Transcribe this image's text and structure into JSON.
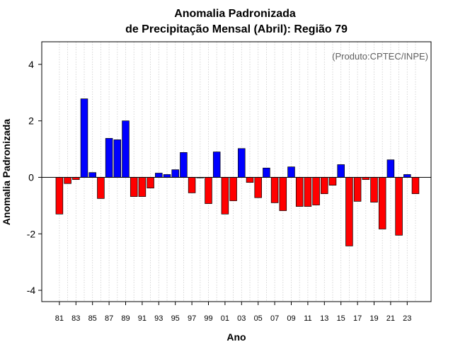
{
  "chart_data": {
    "type": "bar",
    "title_line1": "Anomalia Padronizada",
    "title_line2": "de Precipitação Mensal (Abril): Região 79",
    "xlabel": "Ano",
    "ylabel": "Anomalia Padronizada",
    "credit": "(Produto:CPTEC/INPE)",
    "ylim": [
      -4.4,
      4.8
    ],
    "yticks": [
      -4,
      -2,
      0,
      2,
      4
    ],
    "ytick_labels": [
      "-4",
      "-2",
      "0",
      "2",
      "4"
    ],
    "x_labels": [
      "81",
      "83",
      "85",
      "87",
      "89",
      "91",
      "93",
      "95",
      "97",
      "99",
      "01",
      "03",
      "05",
      "07",
      "09",
      "11",
      "13",
      "15",
      "17",
      "19",
      "21",
      "23"
    ],
    "categories": [
      "1981",
      "1982",
      "1983",
      "1984",
      "1985",
      "1986",
      "1987",
      "1988",
      "1989",
      "1990",
      "1991",
      "1992",
      "1993",
      "1994",
      "1995",
      "1996",
      "1997",
      "1998",
      "1999",
      "2000",
      "2001",
      "2002",
      "2003",
      "2004",
      "2005",
      "2006",
      "2007",
      "2008",
      "2009",
      "2010",
      "2011",
      "2012",
      "2013",
      "2014",
      "2015",
      "2016",
      "2017",
      "2018",
      "2019",
      "2020",
      "2021",
      "2022",
      "2023",
      "2024"
    ],
    "values": [
      -1.3,
      -0.22,
      -0.08,
      2.78,
      0.17,
      -0.75,
      1.38,
      1.33,
      2.0,
      -0.68,
      -0.68,
      -0.38,
      0.15,
      0.1,
      0.27,
      0.88,
      -0.55,
      -0.02,
      -0.93,
      0.9,
      -1.3,
      -0.83,
      1.02,
      -0.18,
      -0.72,
      0.33,
      -0.9,
      -1.18,
      0.37,
      -1.03,
      -1.03,
      -0.98,
      -0.58,
      -0.28,
      0.45,
      -2.43,
      -0.85,
      -0.08,
      -0.88,
      -1.83,
      0.62,
      -2.05,
      0.1,
      -0.58
    ],
    "colors": {
      "positive": "#0000ff",
      "negative": "#ff0000",
      "frame": "#000000",
      "grid": "#cccccc",
      "credit": "#606060"
    },
    "grid": true
  }
}
